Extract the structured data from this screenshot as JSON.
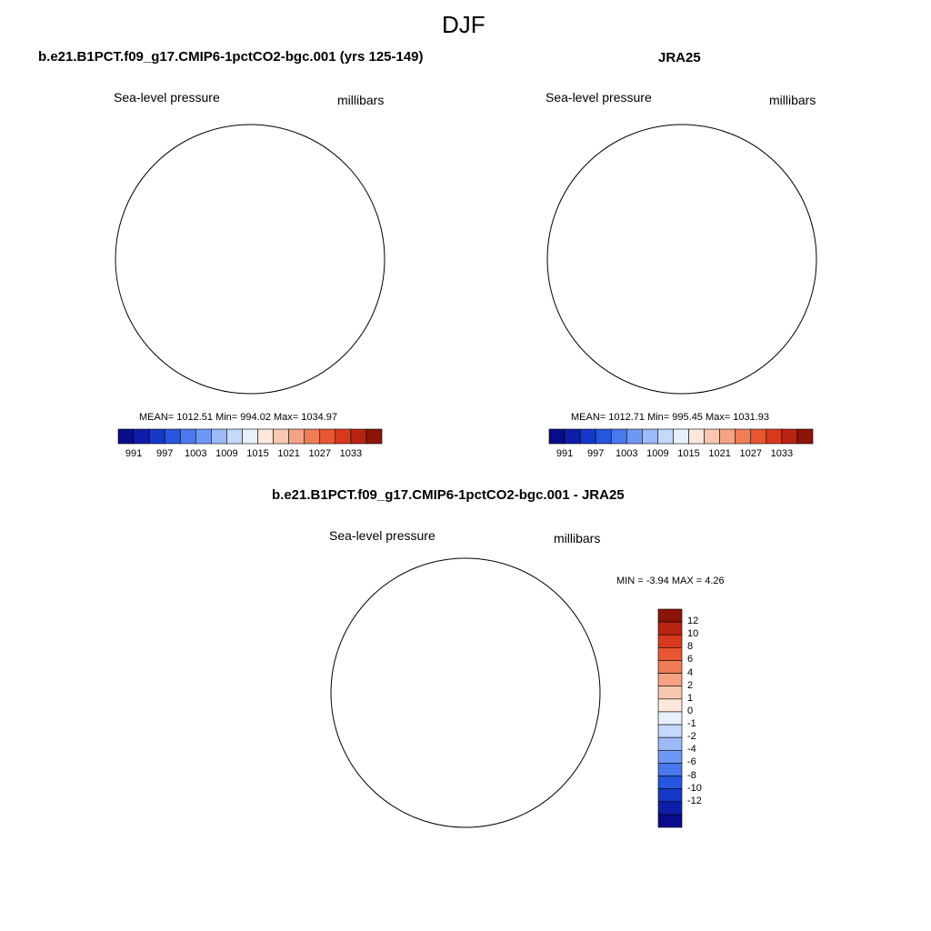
{
  "figure": {
    "title": "DJF"
  },
  "panels": [
    {
      "heading": "b.e21.B1PCT.f09_g17.CMIP6-1pctCO2-bgc.001 (yrs 125-149)",
      "left_label": "Sea-level pressure",
      "right_label": "millibars",
      "stats": "MEAN= 1012.51  Min= 994.02  Max= 1034.97"
    },
    {
      "heading": "JRA25",
      "left_label": "Sea-level pressure",
      "right_label": "millibars",
      "stats": "MEAN= 1012.71  Min= 995.45  Max= 1031.93"
    },
    {
      "heading": "b.e21.B1PCT.f09_g17.CMIP6-1pctCO2-bgc.001 - JRA25",
      "left_label": "Sea-level pressure",
      "right_label": "millibars",
      "stats": "MIN =  -3.94 MAX =   4.26"
    }
  ],
  "colorbar_abs": {
    "labels": [
      "991",
      "997",
      "1003",
      "1009",
      "1015",
      "1021",
      "1027",
      "1033"
    ],
    "colors": [
      "#0a0a8c",
      "#0f1ea8",
      "#1538c8",
      "#2456e0",
      "#4a78ee",
      "#6e98f4",
      "#9cbaf8",
      "#c6d8fb",
      "#e8f0fd",
      "#fde8da",
      "#fac7b0",
      "#f6a384",
      "#f07c58",
      "#ea5632",
      "#d8391c",
      "#b82410",
      "#8c1408"
    ]
  },
  "colorbar_diff": {
    "labels": [
      "12",
      "10",
      "8",
      "6",
      "4",
      "2",
      "1",
      "0",
      "-1",
      "-2",
      "-4",
      "-6",
      "-8",
      "-10",
      "-12"
    ],
    "colors": [
      "#8c1408",
      "#b82410",
      "#d8391c",
      "#ea5632",
      "#f07c58",
      "#f6a384",
      "#fac7b0",
      "#fde8da",
      "#e8f0fd",
      "#c6d8fb",
      "#9cbaf8",
      "#6e98f4",
      "#4a78ee",
      "#2456e0",
      "#1538c8",
      "#0f1ea8",
      "#0a0a8c"
    ]
  }
}
